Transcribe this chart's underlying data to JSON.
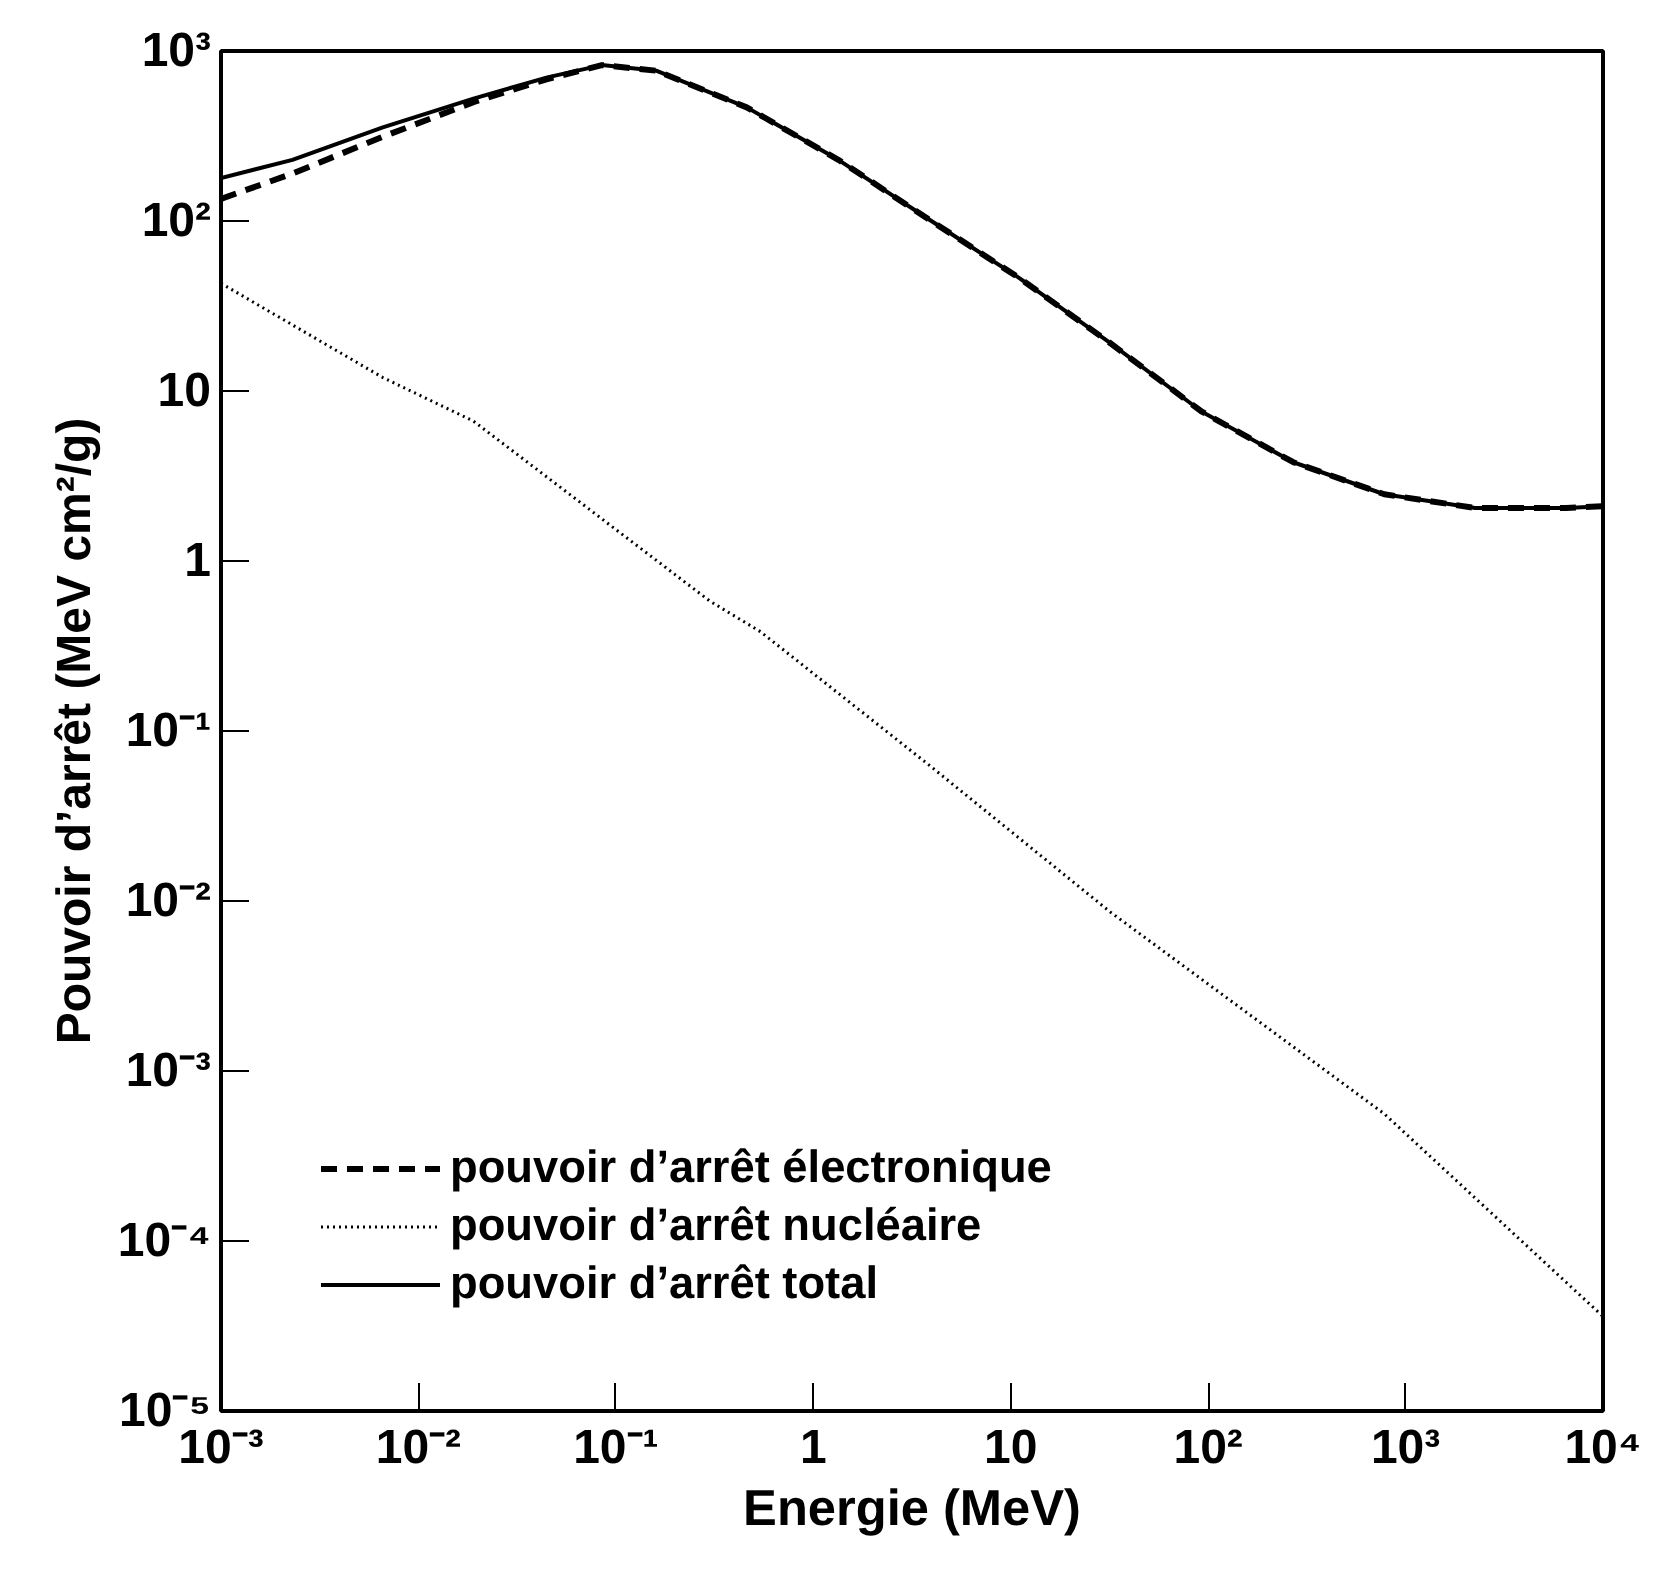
{
  "chart_data": {
    "type": "line",
    "xlabel": "Energie (MeV)",
    "ylabel": "Pouvoir d’arrêt (MeV cm²/g)",
    "log": "xy",
    "grid": false,
    "legend": "bottom left",
    "marker": "none",
    "xlim": [
      0.001,
      10000
    ],
    "ylim": [
      1e-05,
      1000
    ],
    "xticks": [
      {
        "value": 0.001,
        "label": "10⁻³"
      },
      {
        "value": 0.01,
        "label": "10⁻²"
      },
      {
        "value": 0.1,
        "label": "10⁻¹"
      },
      1,
      10,
      {
        "value": 100,
        "label": "10²"
      },
      {
        "value": 1000,
        "label": "10³"
      },
      {
        "value": 10000,
        "label": "10⁴"
      }
    ],
    "yticks": [
      {
        "value": 1e-05,
        "label": "10⁻⁵"
      },
      {
        "value": 0.0001,
        "label": "10⁻⁴"
      },
      {
        "value": 0.001,
        "label": "10⁻³"
      },
      {
        "value": 0.01,
        "label": "10⁻²"
      },
      {
        "value": 0.1,
        "label": "10⁻¹"
      },
      1,
      10,
      {
        "value": 100,
        "label": "10²"
      },
      {
        "value": 1000,
        "label": "10³"
      }
    ],
    "series": [
      {
        "name": "pouvoir d’arrêt électronique",
        "color": "#000000",
        "line_style": "dashed",
        "x": [
          0.001,
          0.0023,
          0.0066,
          0.019,
          0.045,
          0.085,
          0.16,
          0.46,
          1.34,
          3.86,
          11.2,
          32,
          93,
          270,
          780,
          2250,
          6500,
          10000
        ],
        "values": [
          135,
          190,
          313,
          500,
          684,
          826,
          766,
          466,
          229,
          102,
          45.7,
          19.1,
          7.55,
          3.81,
          2.47,
          2.05,
          2.05,
          2.1
        ]
      },
      {
        "name": "pouvoir d’arrêt nucléaire",
        "color": "#000000",
        "line_style": "dotted",
        "x": [
          0.001,
          0.0066,
          0.019,
          0.3,
          0.54,
          3.86,
          32,
          780,
          10000
        ],
        "values": [
          43,
          12,
          6.65,
          0.58,
          0.384,
          0.063,
          0.0086,
          0.00056,
          3.6e-05
        ]
      },
      {
        "name": "pouvoir d’arrêt total",
        "color": "#000000",
        "line_style": "solid",
        "x": [
          0.001,
          0.0023,
          0.0066,
          0.019,
          0.045,
          0.085,
          0.16,
          0.46,
          1.34,
          3.86,
          11.2,
          32,
          93,
          270,
          780,
          2250,
          6500,
          10000
        ],
        "values": [
          179,
          229,
          355,
          525,
          700,
          826,
          766,
          466,
          229,
          102,
          45.7,
          19.1,
          7.55,
          3.81,
          2.47,
          2.05,
          2.05,
          2.1
        ]
      }
    ]
  }
}
